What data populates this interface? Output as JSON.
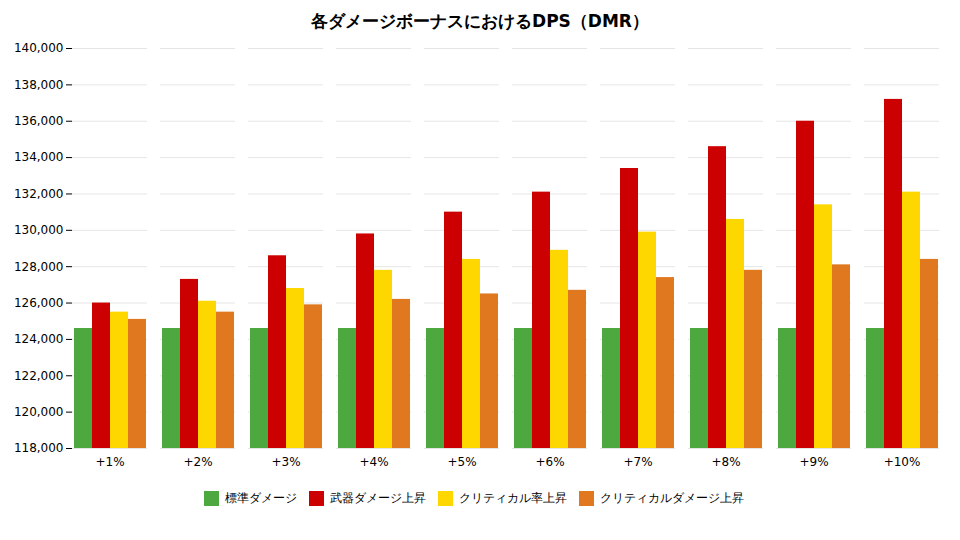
{
  "chart_data": {
    "type": "bar",
    "title": "各ダメージボーナスにおけるDPS（DMR）",
    "categories": [
      "+1%",
      "+2%",
      "+3%",
      "+4%",
      "+5%",
      "+6%",
      "+7%",
      "+8%",
      "+9%",
      "+10%"
    ],
    "series": [
      {
        "name": "標準ダメージ",
        "color": "#4EA840",
        "values": [
          124600,
          124600,
          124600,
          124600,
          124600,
          124600,
          124600,
          124600,
          124600,
          124600
        ]
      },
      {
        "name": "武器ダメージ上昇",
        "color": "#CC0000",
        "values": [
          126000,
          127300,
          128600,
          129800,
          131000,
          132100,
          133400,
          134600,
          136000,
          137200
        ]
      },
      {
        "name": "クリティカル率上昇",
        "color": "#FFD700",
        "values": [
          125500,
          126100,
          126800,
          127800,
          128400,
          128900,
          129900,
          130600,
          131400,
          132100
        ]
      },
      {
        "name": "クリティカルダメージ上昇",
        "color": "#E07820",
        "values": [
          125100,
          125500,
          125900,
          126200,
          126500,
          126700,
          127400,
          127800,
          128100,
          128400
        ]
      }
    ],
    "ylim": [
      118000,
      140000
    ],
    "yticks": [
      {
        "value": 118000,
        "label": "118,000"
      },
      {
        "value": 120000,
        "label": "120,000"
      },
      {
        "value": 122000,
        "label": "122,000"
      },
      {
        "value": 124000,
        "label": "124,000"
      },
      {
        "value": 126000,
        "label": "126,000"
      },
      {
        "value": 128000,
        "label": "128,000"
      },
      {
        "value": 130000,
        "label": "130,000"
      },
      {
        "value": 132000,
        "label": "132,000"
      },
      {
        "value": 134000,
        "label": "134,000"
      },
      {
        "value": 136000,
        "label": "136,000"
      },
      {
        "value": 138000,
        "label": "138,000"
      },
      {
        "value": 140000,
        "label": "140,000"
      }
    ],
    "grid": true,
    "legend": "bottom"
  }
}
